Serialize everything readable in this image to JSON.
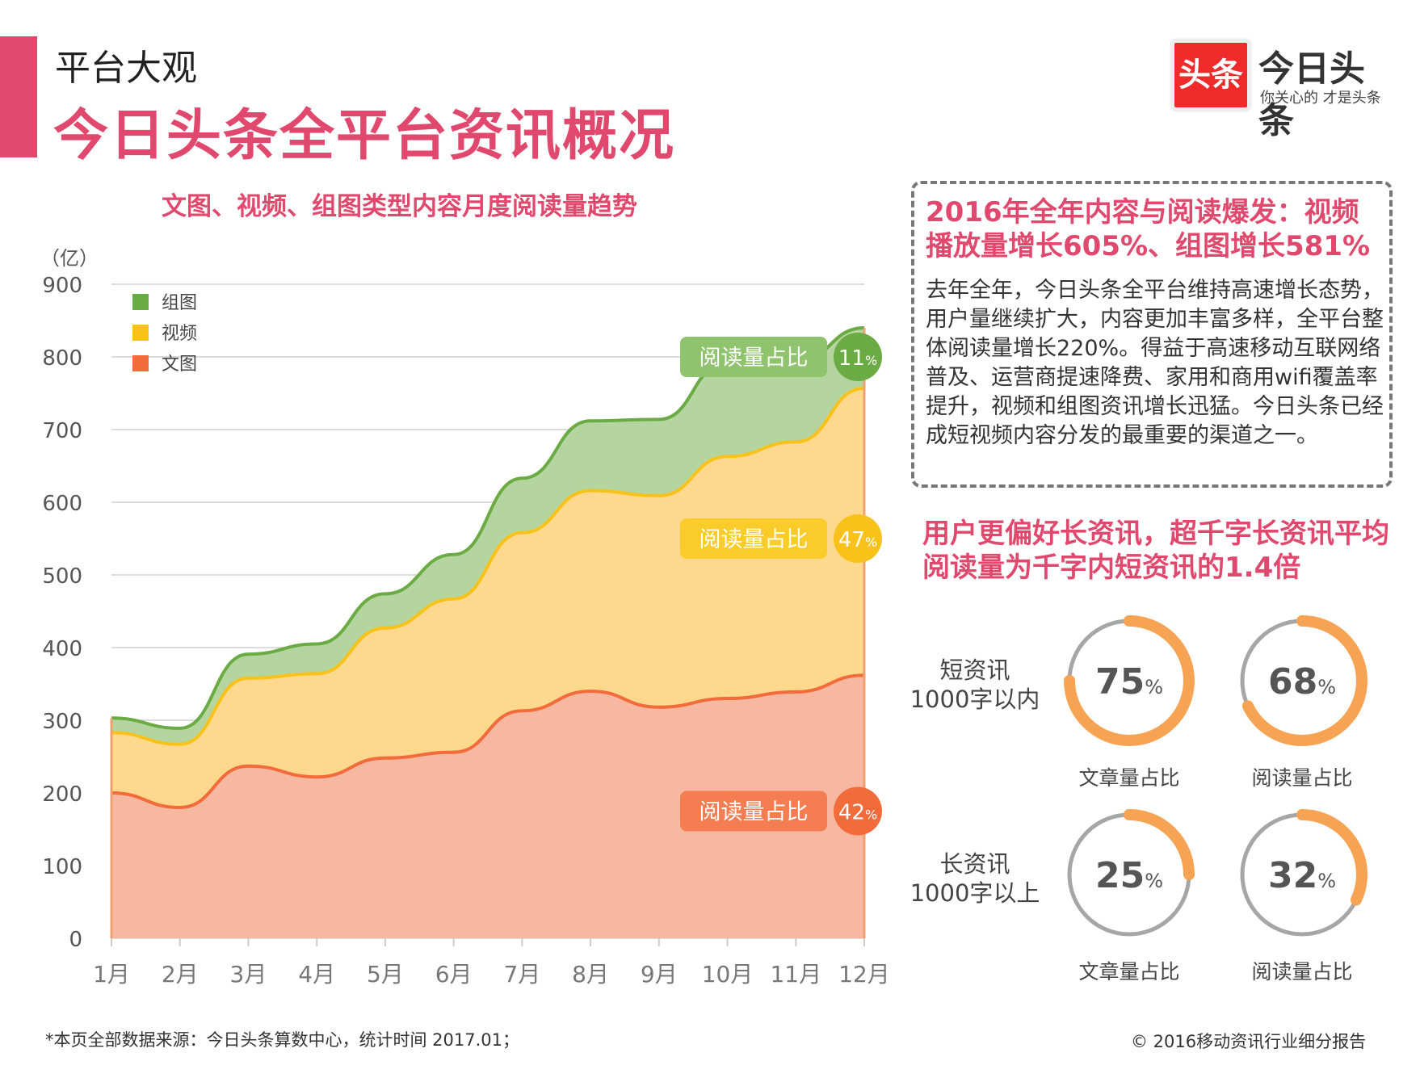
{
  "header": {
    "subtitle": "平台大观",
    "title": "今日头条全平台资讯概况"
  },
  "logo": {
    "box_text": "头条",
    "name": "今日头条",
    "slogan": "你关心的 才是头条"
  },
  "chart_data": {
    "type": "area",
    "stacked": true,
    "title": "文图、视频、组图类型内容月度阅读量趋势",
    "ylabel": "（亿）",
    "xlabel": "",
    "ylim": [
      0,
      900
    ],
    "yticks": [
      0,
      100,
      200,
      300,
      400,
      500,
      600,
      700,
      800,
      900
    ],
    "grid": true,
    "legend_position": "top-left",
    "categories": [
      "1月",
      "2月",
      "3月",
      "4月",
      "5月",
      "6月",
      "7月",
      "8月",
      "9月",
      "10月",
      "11月",
      "12月"
    ],
    "series": [
      {
        "name": "文图",
        "color": "#f26b3a",
        "values": [
          200,
          180,
          237,
          222,
          248,
          256,
          313,
          340,
          318,
          330,
          339,
          362
        ]
      },
      {
        "name": "视频",
        "color": "#f8c21b",
        "values": [
          83,
          87,
          121,
          142,
          179,
          211,
          245,
          276,
          291,
          333,
          344,
          395
        ]
      },
      {
        "name": "组图",
        "color": "#6aab43",
        "values": [
          20,
          22,
          33,
          41,
          47,
          61,
          75,
          96,
          105,
          130,
          110,
          83
        ]
      }
    ],
    "annotations": [
      {
        "label": "阅读量占比",
        "value": "11",
        "unit": "%",
        "series": "组图"
      },
      {
        "label": "阅读量占比",
        "value": "47",
        "unit": "%",
        "series": "视频"
      },
      {
        "label": "阅读量占比",
        "value": "42",
        "unit": "%",
        "series": "文图"
      }
    ]
  },
  "callout": {
    "headline": "2016年全年内容与阅读爆发：视频播放量增长605%、组图增长581%",
    "body": "去年全年，今日头条全平台维持高速增长态势，用户量继续扩大，内容更加丰富多样，全平台整体阅读量增长220%。得益于高速移动互联网络普及、运营商提速降费、家用和商用wifi覆盖率提升，视频和组图资讯增长迅猛。今日头条已经成短视频内容分发的最重要的渠道之一。"
  },
  "preference": {
    "headline": "用户更偏好长资讯，超千字长资讯平均阅读量为千字内短资讯的1.4倍",
    "rows": [
      {
        "label_line1": "短资讯",
        "label_line2": "1000字以内",
        "rings": [
          {
            "value": "75",
            "unit": "%",
            "fraction": 0.75,
            "caption": "文章量占比"
          },
          {
            "value": "68",
            "unit": "%",
            "fraction": 0.68,
            "caption": "阅读量占比"
          }
        ]
      },
      {
        "label_line1": "长资讯",
        "label_line2": "1000字以上",
        "rings": [
          {
            "value": "25",
            "unit": "%",
            "fraction": 0.25,
            "caption": "文章量占比"
          },
          {
            "value": "32",
            "unit": "%",
            "fraction": 0.32,
            "caption": "阅读量占比"
          }
        ]
      }
    ],
    "ring_color": "#f7a354",
    "track_color": "#a6a6a6"
  },
  "footer": {
    "source": "*本页全部数据来源：今日头条算数中心，统计时间 2017.01；",
    "copyright": "© 2016移动资讯行业细分报告"
  }
}
